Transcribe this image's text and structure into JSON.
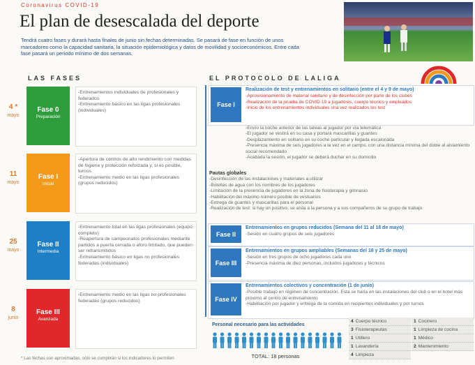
{
  "header": {
    "kicker": "Coronavirus COVID-19",
    "title": "El plan de desescalada del deporte",
    "intro": "Tendrá cuatro fases y durará hasta finales de junio sin fechas determinadas. Se pasará de fase en función de unos marcadores como la capacidad sanitaria, la situación epidemiológica y datos de movilidad y socioeconómicos. Entre cada fase pasará un periodo mínimo de dos semanas."
  },
  "phases": {
    "title": "LAS FASES",
    "footnote": "* Las fechas son aproximadas, sólo se cumplirán si los indicadores lo permiten",
    "items": [
      {
        "day": "4 *",
        "month": "mayo",
        "name": "Fase 0",
        "stage": "Preparación",
        "color": "#2e9e3c",
        "items": [
          "-Entrenamientos individuales de profesionales y federados",
          "-Entrenamiento básico en las ligas profesionales (individuales)"
        ]
      },
      {
        "day": "11",
        "month": "mayo",
        "name": "Fase I",
        "stage": "Inicial",
        "color": "#f39a1b",
        "items": [
          "-Apertura de centros de alto rendimiento con medidas de higiene y protección reforzada y, si es posible, turnos",
          "-Entrenamiento medio en las ligas profesionales (grupos reducidos)"
        ]
      },
      {
        "day": "25",
        "month": "mayo",
        "name": "Fase II",
        "stage": "Intermedia",
        "color": "#1f7fc6",
        "items": [
          "-Entrenamiento total en las ligas profesionales (equipo completo)",
          "-Reapertura de campeonatos profesionales mediante partidos a puerta cerrada o aforo limitado, que pueden ser retransmitidos",
          "-Entrenamiento básico en ligas no profesionales federadas (individuales)"
        ]
      },
      {
        "day": "8",
        "month": "junio",
        "name": "Fase III",
        "stage": "Avanzada",
        "color": "#e0282b",
        "items": [
          "-Entrenamiento medio en las ligas no profesionales federadas (grupos reducidos)"
        ]
      }
    ]
  },
  "protocol": {
    "title": "EL PROTOCOLO DE LALIGA",
    "phases": [
      {
        "name": "Fase I",
        "heading": "Realización de test y entrenamientos en solitario (entre el 4 y 9 de mayo)",
        "items": [
          "-Aprovisionamiento de material sanitario y de desinfección por parte de los clubes",
          "-Realización de la prueba de COVID-19 a jugadores, cuerpo técnico y empleados",
          "-Inicio de los entrenamientos individuales una vez realizados los test"
        ],
        "extra": [
          "-Envío la noche anterior de las tareas al jugador por vía telemática",
          "-El jugador se vestirá en su casa y portará mascarillas y guantes",
          "-Desplazamiento en solitario en su coche particular y llegada escalonada",
          "-Presencia máxima de seis jugadores a la vez en el campo, con una distancia mínima del doble al aislamiento social recomendado",
          "-Acabada la sesión, el jugador se deberá duchar en su domicilio"
        ]
      },
      {
        "name": "Fase II",
        "heading": "Entrenamientos en grupos reducidos (Semana del 11 al 18 de mayo)",
        "items": [
          "-Sesión en cuatro grupos de seis jugadores"
        ]
      },
      {
        "name": "Fase III",
        "heading": "Entrenamientos en grupos ampliables (Semanas del 18 y 25 de mayo)",
        "items": [
          "-Sesión en tres grupos de ocho jugadores cada uno",
          "-Presencia máxima de diez personas, incluidos jugadores y técnicos"
        ]
      },
      {
        "name": "Fase IV",
        "heading": "Entrenamientos colectivos y concentración (1 de junio)",
        "items": [
          "-Posible trabajo en régimen de concentración. Esta se haría en las instalaciones del club o en el hotel más próximo al centro de entrenamiento",
          "-Habilitación por jugador y entrega de la comida en recipientes individuales y por turnos"
        ]
      }
    ],
    "guidelines": {
      "title": "Pautas globales",
      "items": [
        "-Desinfección de las instalaciones y materiales a utilizar",
        "-Botellas de agua con los nombres de los jugadores",
        "-Limitación de la presencia de jugadores en la zona de fisioterapia y gimnasio",
        "-Habilitación del máximo número posible de vestuarios",
        "-Entrega de guantes y mascarillas para el personal",
        "-Realización de test: si hay un positivo, se aísla a la persona y a sus compañeros de su grupo de trabajo"
      ]
    }
  },
  "staff": {
    "title": "Personal necesario para las actividades",
    "total": "TOTAL: 18 personas",
    "roles": [
      {
        "count": 4,
        "role": "Cuerpo técnico"
      },
      {
        "count": 3,
        "role": "Fisioterapeutas"
      },
      {
        "count": 1,
        "role": "Utillero"
      },
      {
        "count": 1,
        "role": "Lavandería"
      },
      {
        "count": 4,
        "role": "Limpieza"
      },
      {
        "count": 1,
        "role": "Cocinero"
      },
      {
        "count": 1,
        "role": "Limpieza de cocina"
      },
      {
        "count": 1,
        "role": "Médico"
      },
      {
        "count": 2,
        "role": "Mantenimiento"
      }
    ]
  }
}
